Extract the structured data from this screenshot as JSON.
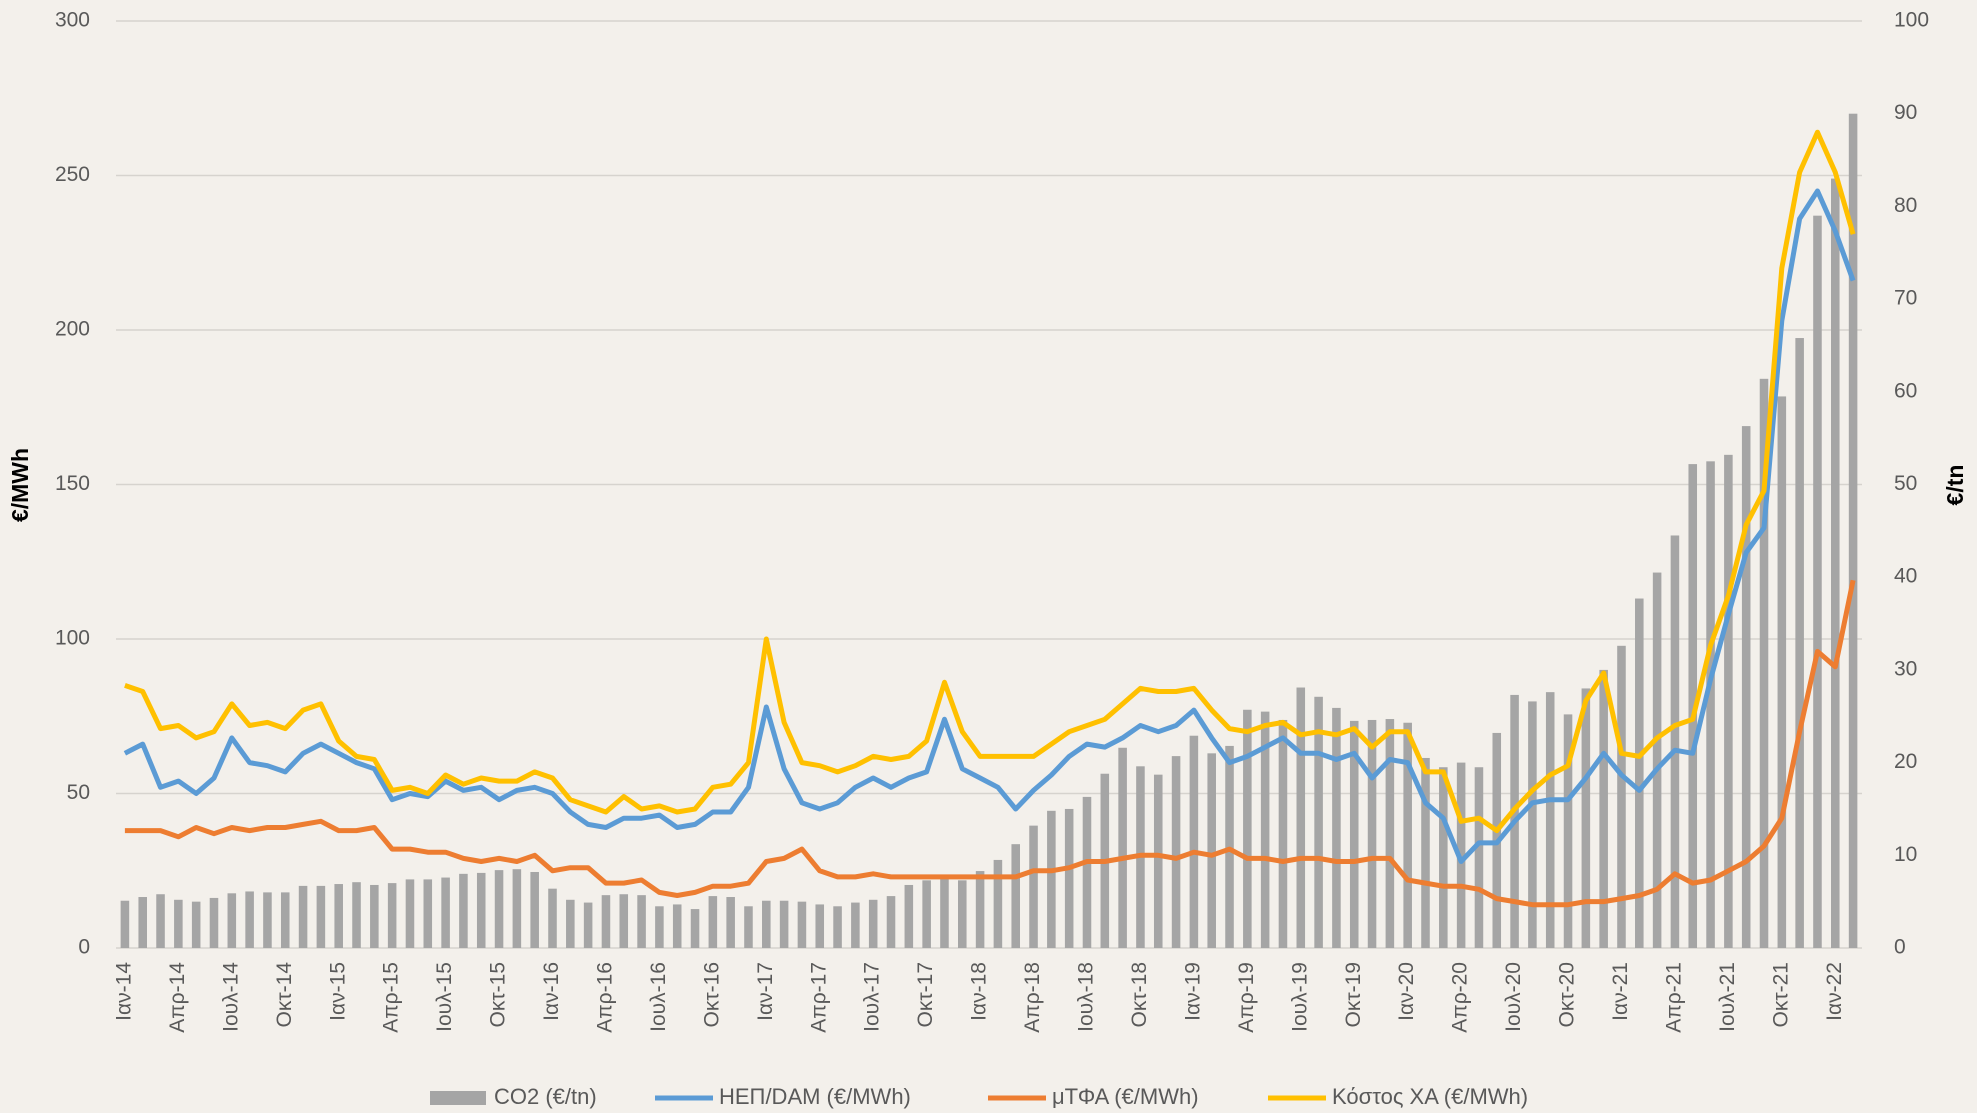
{
  "chart_data": {
    "type": "combo",
    "categories": [
      "Ιαν-14",
      null,
      null,
      "Απρ-14",
      null,
      null,
      "Ιουλ-14",
      null,
      null,
      "Οκτ-14",
      null,
      null,
      "Ιαν-15",
      null,
      null,
      "Απρ-15",
      null,
      null,
      "Ιουλ-15",
      null,
      null,
      "Οκτ-15",
      null,
      null,
      "Ιαν-16",
      null,
      null,
      "Απρ-16",
      null,
      null,
      "Ιουλ-16",
      null,
      null,
      "Οκτ-16",
      null,
      null,
      "Ιαν-17",
      null,
      null,
      "Απρ-17",
      null,
      null,
      "Ιουλ-17",
      null,
      null,
      "Οκτ-17",
      null,
      null,
      "Ιαν-18",
      null,
      null,
      "Απρ-18",
      null,
      null,
      "Ιουλ-18",
      null,
      null,
      "Οκτ-18",
      null,
      null,
      "Ιαν-19",
      null,
      null,
      "Απρ-19",
      null,
      null,
      "Ιουλ-19",
      null,
      null,
      "Οκτ-19",
      null,
      null,
      "Ιαν-20",
      null,
      null,
      "Απρ-20",
      null,
      null,
      "Ιουλ-20",
      null,
      null,
      "Οκτ-20",
      null,
      null,
      "Ιαν-21",
      null,
      null,
      "Απρ-21",
      null,
      null,
      "Ιουλ-21",
      null,
      null,
      "Οκτ-21",
      null,
      null,
      "Ιαν-22",
      null
    ],
    "series": [
      {
        "name": "CO2 (€/tn)",
        "type": "bar",
        "axis": "y2",
        "color": "#a5a5a5",
        "values": [
          5.1,
          5.5,
          5.8,
          5.2,
          5.0,
          5.4,
          5.9,
          6.1,
          6.0,
          6.0,
          6.7,
          6.7,
          6.9,
          7.1,
          6.8,
          7.0,
          7.4,
          7.4,
          7.6,
          8.0,
          8.1,
          8.4,
          8.5,
          8.2,
          6.4,
          5.2,
          4.9,
          5.7,
          5.8,
          5.7,
          4.5,
          4.7,
          4.2,
          5.6,
          5.5,
          4.5,
          5.1,
          5.1,
          5.0,
          4.7,
          4.5,
          4.9,
          5.2,
          5.6,
          6.8,
          7.3,
          7.5,
          7.3,
          8.3,
          9.5,
          11.2,
          13.2,
          14.8,
          15.0,
          16.3,
          18.8,
          21.6,
          19.6,
          18.7,
          20.7,
          22.9,
          21.0,
          21.8,
          25.7,
          25.5,
          24.6,
          28.1,
          27.1,
          25.9,
          24.5,
          24.6,
          24.7,
          24.3,
          20.5,
          19.5,
          20.0,
          19.5,
          23.2,
          27.3,
          26.6,
          27.6,
          25.2,
          28,
          30,
          32.6,
          37.7,
          40.5,
          44.5,
          52.2,
          52.5,
          53.2,
          56.3,
          61.4,
          59.5,
          65.8,
          79,
          83,
          90
        ]
      },
      {
        "name": "ΗΕΠ/DAM (€/MWh)",
        "type": "line",
        "color": "#5b9bd5",
        "values": [
          63,
          66,
          52,
          54,
          50,
          55,
          68,
          60,
          59,
          57,
          63,
          66,
          63,
          60,
          58,
          48,
          50,
          49,
          54,
          51,
          52,
          48,
          51,
          52,
          50,
          44,
          40,
          39,
          42,
          42,
          43,
          39,
          40,
          44,
          44,
          52,
          78,
          58,
          47,
          45,
          47,
          52,
          55,
          52,
          55,
          57,
          74,
          58,
          55,
          52,
          45,
          51,
          56,
          62,
          66,
          65,
          68,
          72,
          70,
          72,
          77,
          68,
          60,
          62,
          65,
          68,
          63,
          63,
          61,
          63,
          55,
          61,
          60,
          47,
          42,
          28,
          34,
          34,
          41,
          47,
          48,
          48,
          55,
          63,
          56,
          51,
          58,
          64,
          63,
          87,
          108,
          128,
          136,
          203,
          236,
          245,
          232,
          216
        ]
      },
      {
        "name": "μΤΦΑ (€/MWh)",
        "type": "line",
        "color": "#ed7d31",
        "values": [
          38,
          38,
          38,
          36,
          39,
          37,
          39,
          38,
          39,
          39,
          40,
          41,
          38,
          38,
          39,
          32,
          32,
          31,
          31,
          29,
          28,
          29,
          28,
          30,
          25,
          26,
          26,
          21,
          21,
          22,
          18,
          17,
          18,
          20,
          20,
          21,
          28,
          29,
          32,
          25,
          23,
          23,
          24,
          23,
          23,
          23,
          23,
          23,
          23,
          23,
          23,
          25,
          25,
          26,
          28,
          28,
          29,
          30,
          30,
          29,
          31,
          30,
          32,
          29,
          29,
          28,
          29,
          29,
          28,
          28,
          29,
          29,
          22,
          21,
          20,
          20,
          19,
          16,
          15,
          14,
          14,
          14,
          15,
          15,
          16,
          17,
          19,
          24,
          21,
          22,
          25,
          28,
          33,
          42,
          70,
          96,
          91,
          119
        ]
      },
      {
        "name": "Κόστος ΧΑ (€/MWh)",
        "type": "line",
        "color": "#ffc000",
        "values": [
          85,
          83,
          71,
          72,
          68,
          70,
          79,
          72,
          73,
          71,
          77,
          79,
          67,
          62,
          61,
          51,
          52,
          50,
          56,
          53,
          55,
          54,
          54,
          57,
          55,
          48,
          46,
          44,
          49,
          45,
          46,
          44,
          45,
          52,
          53,
          60,
          100,
          73,
          60,
          59,
          57,
          59,
          62,
          61,
          62,
          67,
          86,
          70,
          62,
          62,
          62,
          62,
          66,
          70,
          72,
          74,
          79,
          84,
          83,
          83,
          84,
          77,
          71,
          70,
          72,
          73,
          69,
          70,
          69,
          71,
          65,
          70,
          70,
          57,
          57,
          41,
          42,
          38,
          45,
          51,
          56,
          59,
          80,
          89,
          63,
          62,
          68,
          72,
          74,
          98,
          114,
          137,
          148,
          220,
          251,
          264,
          251,
          231
        ]
      }
    ],
    "ylabel": "€/MWh",
    "y2label": "€/tn",
    "ylim": [
      0,
      300
    ],
    "yticks": [
      0,
      50,
      100,
      150,
      200,
      250,
      300
    ],
    "y2lim": [
      0,
      100
    ],
    "y2ticks": [
      0,
      10,
      20,
      30,
      40,
      50,
      60,
      70,
      80,
      90,
      100
    ],
    "grid": true,
    "legend": "bottom"
  }
}
